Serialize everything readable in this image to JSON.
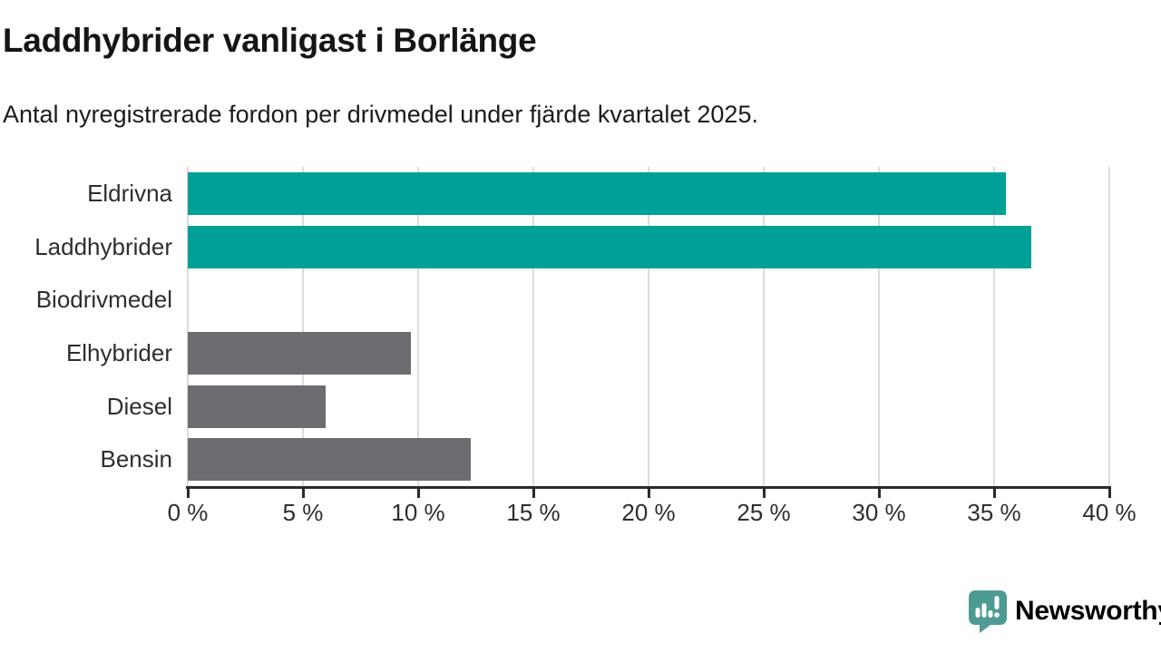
{
  "chart_data": {
    "type": "bar",
    "orientation": "horizontal",
    "title": "Laddhybrider vanligast i Borlänge",
    "subtitle": "Antal nyregistrerade fordon per drivmedel under fjärde kvartalet 2025.",
    "categories": [
      "Eldrivna",
      "Laddhybrider",
      "Biodrivmedel",
      "Elhybrider",
      "Diesel",
      "Bensin"
    ],
    "values": [
      35.5,
      36.6,
      0,
      9.7,
      6.0,
      12.3
    ],
    "unit": "%",
    "colors": [
      "#00A096",
      "#00A096",
      "#00A096",
      "#6C6C71",
      "#6C6C71",
      "#6C6C71"
    ],
    "highlight_color": "#00A096",
    "default_color": "#6C6C71",
    "xlim": [
      0,
      40
    ],
    "xticks": [
      {
        "value": 0,
        "label": "0 %"
      },
      {
        "value": 5,
        "label": "5 %"
      },
      {
        "value": 10,
        "label": "10 %"
      },
      {
        "value": 15,
        "label": "15 %"
      },
      {
        "value": 20,
        "label": "20 %"
      },
      {
        "value": 25,
        "label": "25 %"
      },
      {
        "value": 30,
        "label": "30 %"
      },
      {
        "value": 35,
        "label": "35 %"
      },
      {
        "value": 40,
        "label": "40 %"
      }
    ],
    "grid": true,
    "gridline_color": "#dcdcdc",
    "axis_color": "#2b2b2b",
    "legend": "none"
  },
  "footer": {
    "brand": "Newsworthy",
    "brand_color": "#43978F",
    "icon_color": "#4E9B93"
  }
}
